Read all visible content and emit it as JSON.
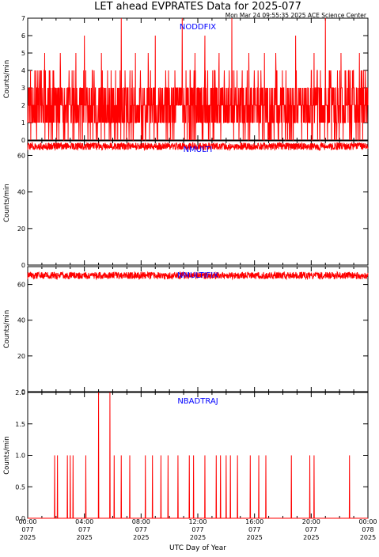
{
  "header": {
    "title": "LET ahead EVPRATES Data for 2025-077",
    "timestamp": "Mon Mar 24 09:55:35 2025 ACE Science Center"
  },
  "xaxis": {
    "label": "UTC Day of Year",
    "ticks": [
      {
        "hour": 0,
        "time": "00:00",
        "doy": "077",
        "year": "2025"
      },
      {
        "hour": 4,
        "time": "04:00",
        "doy": "077",
        "year": "2025"
      },
      {
        "hour": 8,
        "time": "08:00",
        "doy": "077",
        "year": "2025"
      },
      {
        "hour": 12,
        "time": "12:00",
        "doy": "077",
        "year": "2025"
      },
      {
        "hour": 16,
        "time": "16:00",
        "doy": "077",
        "year": "2025"
      },
      {
        "hour": 20,
        "time": "20:00",
        "doy": "077",
        "year": "2025"
      },
      {
        "hour": 24,
        "time": "00:00",
        "doy": "078",
        "year": "2025"
      }
    ]
  },
  "colors": {
    "series": "#ff0000",
    "label": "#0000ff",
    "axis": "#000000"
  },
  "chart_data": [
    {
      "type": "line",
      "name": "NODDFIX",
      "ylabel": "Counts/min",
      "xlim": [
        0,
        24
      ],
      "ylim": [
        0,
        7
      ],
      "yticks": [
        "0",
        "1",
        "2",
        "3",
        "4",
        "5",
        "6",
        "7"
      ],
      "mean": 2,
      "low": 0,
      "high": 4,
      "spikes": [
        {
          "x": 6.6,
          "y": 7
        },
        {
          "x": 10.9,
          "y": 7
        },
        {
          "x": 14.4,
          "y": 7
        },
        {
          "x": 21.0,
          "y": 7
        },
        {
          "x": 4.0,
          "y": 6
        },
        {
          "x": 9.0,
          "y": 6
        },
        {
          "x": 12.5,
          "y": 6
        },
        {
          "x": 18.9,
          "y": 6
        },
        {
          "x": 1.2,
          "y": 5
        },
        {
          "x": 2.3,
          "y": 5
        },
        {
          "x": 3.4,
          "y": 5
        },
        {
          "x": 5.2,
          "y": 5
        },
        {
          "x": 7.6,
          "y": 5
        },
        {
          "x": 8.5,
          "y": 5
        },
        {
          "x": 11.8,
          "y": 5
        },
        {
          "x": 13.5,
          "y": 5
        },
        {
          "x": 15.6,
          "y": 5
        },
        {
          "x": 16.7,
          "y": 5
        },
        {
          "x": 17.5,
          "y": 5
        },
        {
          "x": 20.2,
          "y": 5
        },
        {
          "x": 22.1,
          "y": 5
        },
        {
          "x": 23.4,
          "y": 5
        }
      ]
    },
    {
      "type": "line",
      "name": "NMULTI",
      "ylabel": "Counts/min",
      "xlim": [
        0,
        24
      ],
      "ylim": [
        0,
        68
      ],
      "yticks": [
        "0",
        "20",
        "40",
        "60"
      ],
      "ytick_values": [
        0,
        20,
        40,
        60
      ],
      "mean": 65,
      "jitter": 2
    },
    {
      "type": "line",
      "name": "NMULTIFIX",
      "ylabel": "Counts/min",
      "xlim": [
        0,
        24
      ],
      "ylim": [
        0,
        70
      ],
      "yticks": [
        "0",
        "20",
        "40",
        "60"
      ],
      "ytick_values": [
        0,
        20,
        40,
        60
      ],
      "mean": 65,
      "jitter": 2
    },
    {
      "type": "line",
      "name": "NBADTRAJ",
      "ylabel": "Counts/min",
      "xlim": [
        0,
        24
      ],
      "ylim": [
        0,
        2
      ],
      "yticks": [
        "0.0",
        "0.5",
        "1.0",
        "1.5",
        "2.0"
      ],
      "ytick_values": [
        0,
        0.5,
        1.0,
        1.5,
        2.0
      ],
      "events": [
        {
          "x": 1.9,
          "y": 1
        },
        {
          "x": 2.1,
          "y": 1
        },
        {
          "x": 2.8,
          "y": 1
        },
        {
          "x": 3.0,
          "y": 1
        },
        {
          "x": 3.2,
          "y": 1
        },
        {
          "x": 4.1,
          "y": 1
        },
        {
          "x": 5.0,
          "y": 2
        },
        {
          "x": 5.8,
          "y": 2
        },
        {
          "x": 6.1,
          "y": 1
        },
        {
          "x": 6.6,
          "y": 1
        },
        {
          "x": 7.2,
          "y": 1
        },
        {
          "x": 8.3,
          "y": 1
        },
        {
          "x": 8.8,
          "y": 1
        },
        {
          "x": 9.4,
          "y": 1
        },
        {
          "x": 9.9,
          "y": 1
        },
        {
          "x": 10.6,
          "y": 1
        },
        {
          "x": 11.4,
          "y": 1
        },
        {
          "x": 11.7,
          "y": 1
        },
        {
          "x": 12.5,
          "y": 1
        },
        {
          "x": 13.3,
          "y": 1
        },
        {
          "x": 13.6,
          "y": 1
        },
        {
          "x": 14.0,
          "y": 1
        },
        {
          "x": 14.3,
          "y": 1
        },
        {
          "x": 14.8,
          "y": 1
        },
        {
          "x": 15.7,
          "y": 1
        },
        {
          "x": 16.3,
          "y": 1
        },
        {
          "x": 16.8,
          "y": 1
        },
        {
          "x": 18.6,
          "y": 1
        },
        {
          "x": 19.9,
          "y": 1
        },
        {
          "x": 20.2,
          "y": 1
        },
        {
          "x": 22.7,
          "y": 1
        }
      ]
    }
  ]
}
